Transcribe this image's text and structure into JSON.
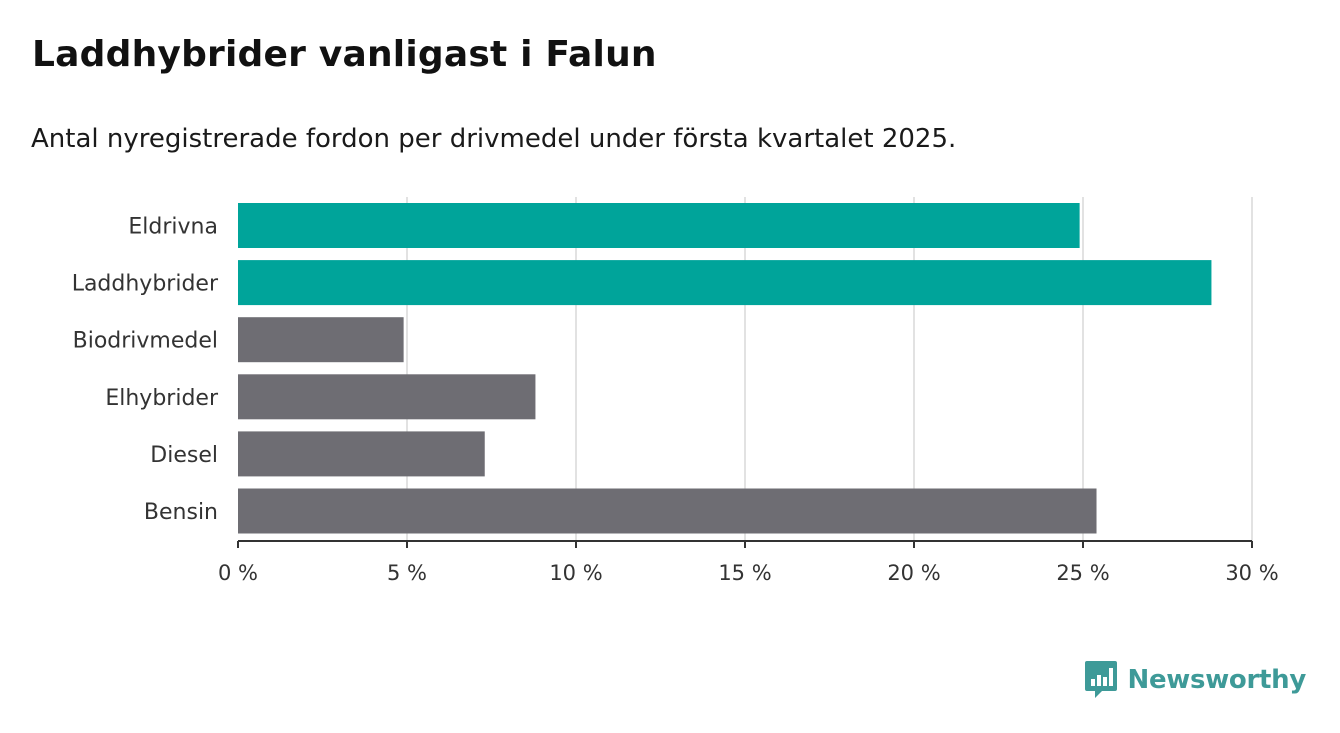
{
  "title": "Laddhybrider vanligast i Falun",
  "subtitle": "Antal nyregistrerade fordon per drivmedel under första kvartalet 2025.",
  "brand": {
    "name": "Newsworthy",
    "color": "#3e9a98"
  },
  "colors": {
    "highlight": "#00a49a",
    "default": "#6e6d73",
    "grid": "#d9d9d9",
    "axis": "#333333"
  },
  "chart_data": {
    "type": "bar",
    "orientation": "horizontal",
    "categories": [
      "Eldrivna",
      "Laddhybrider",
      "Biodrivmedel",
      "Elhybrider",
      "Diesel",
      "Bensin"
    ],
    "values": [
      24.9,
      28.8,
      4.9,
      8.8,
      7.3,
      25.4
    ],
    "highlighted": [
      true,
      true,
      false,
      false,
      false,
      false
    ],
    "xlim": [
      0,
      30
    ],
    "xticks": [
      0,
      5,
      10,
      15,
      20,
      25,
      30
    ],
    "xtick_labels": [
      "0 %",
      "5 %",
      "10 %",
      "15 %",
      "20 %",
      "25 %",
      "30 %"
    ],
    "unit": "%",
    "grid": true,
    "legend": "none"
  }
}
